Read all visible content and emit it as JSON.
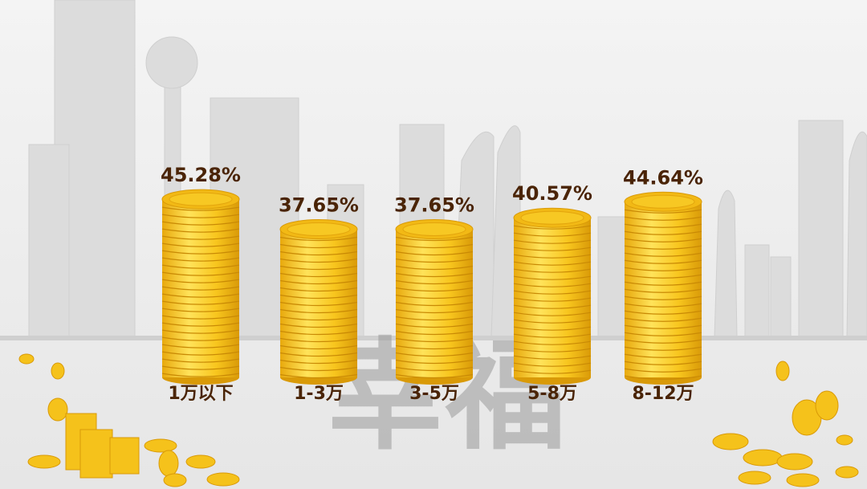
{
  "chart_data": {
    "type": "coin-bar",
    "categories": [
      "1万以下",
      "1-3万",
      "3-5万",
      "5-8万",
      "8-12万"
    ],
    "values": [
      45.28,
      37.65,
      37.65,
      40.57,
      44.64
    ],
    "value_labels": [
      "45.28%",
      "37.65%",
      "37.65%",
      "40.57%",
      "44.64%"
    ],
    "color": "#f7c823",
    "background_text": "幸福"
  }
}
